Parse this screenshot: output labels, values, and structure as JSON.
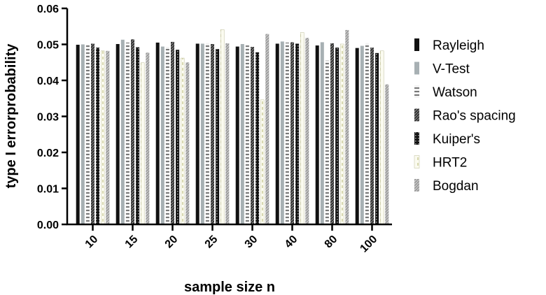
{
  "chart_data": {
    "type": "bar",
    "title": "",
    "xlabel": "sample size n",
    "ylabel": "type I errorprobability",
    "ylim": [
      0,
      0.06
    ],
    "yticks": [
      "0.00",
      "0.01",
      "0.02",
      "0.03",
      "0.04",
      "0.05",
      "0.06"
    ],
    "categories": [
      "10",
      "15",
      "20",
      "25",
      "30",
      "40",
      "80",
      "100"
    ],
    "legend_position": "right",
    "series": [
      {
        "name": "Rayleigh",
        "color": "#111111",
        "pattern": "solid",
        "values": [
          0.0499,
          0.0501,
          0.0505,
          0.0502,
          0.0494,
          0.0502,
          0.0497,
          0.049
        ]
      },
      {
        "name": "V-Test",
        "color": "#a7b0b3",
        "pattern": "solid",
        "values": [
          0.05,
          0.0513,
          0.0494,
          0.0502,
          0.0501,
          0.0508,
          0.0506,
          0.0496
        ]
      },
      {
        "name": "Watson",
        "color": "#cfcfcf",
        "pattern": "hstripe",
        "values": [
          0.05,
          0.0505,
          0.0493,
          0.0503,
          0.0497,
          0.0505,
          0.0455,
          0.0503
        ]
      },
      {
        "name": "Rao's spacing",
        "color": "#444444",
        "pattern": "diag",
        "values": [
          0.0502,
          0.0514,
          0.0507,
          0.0501,
          0.0493,
          0.0506,
          0.0503,
          0.0491
        ]
      },
      {
        "name": "Kuiper's",
        "color": "#1a1a1a",
        "pattern": "dots",
        "values": [
          0.0491,
          0.0492,
          0.0485,
          0.0487,
          0.0478,
          0.0502,
          0.0491,
          0.0476
        ]
      },
      {
        "name": "HRT2",
        "color": "#f5f5dc",
        "pattern": "dashed",
        "values": [
          0.0482,
          0.0449,
          0.0462,
          0.0541,
          0.0346,
          0.0533,
          0.0501,
          0.0482
        ]
      },
      {
        "name": "Bogdan",
        "color": "#9a9a9a",
        "pattern": "diag",
        "values": [
          0.0482,
          0.0477,
          0.045,
          0.0503,
          0.0529,
          0.0518,
          0.054,
          0.0389
        ]
      }
    ]
  }
}
